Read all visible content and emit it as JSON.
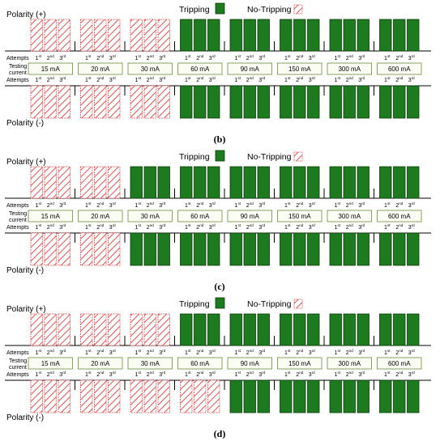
{
  "legend": {
    "tripping_label": "Tripping",
    "no_tripping_label": "No-Tripping"
  },
  "labels": {
    "polarity_pos": "Polarity (+)",
    "polarity_neg": "Polarity (-)",
    "attempts": "Attempts",
    "testing_line1": "Testing",
    "testing_line2": "current"
  },
  "attempt_ordinals": [
    {
      "n": "1",
      "sup": "st"
    },
    {
      "n": "2",
      "sup": "nd"
    },
    {
      "n": "3",
      "sup": "rd"
    }
  ],
  "currents": [
    "15 mA",
    "20 mA",
    "30 mA",
    "60 mA",
    "90 mA",
    "150 mA",
    "300 mA",
    "600 mA"
  ],
  "colors": {
    "tripping_fill": "#1e7a1e",
    "tripping_stroke": "#0a3d0a",
    "no_trip_stroke": "#e05050",
    "box_border": "#7a9a4a"
  },
  "panels": [
    {
      "caption": "(b)",
      "pos_trip": [
        false,
        false,
        false,
        true,
        true,
        true,
        true,
        true
      ],
      "neg_trip": [
        false,
        false,
        false,
        true,
        true,
        true,
        true,
        true
      ]
    },
    {
      "caption": "(c)",
      "pos_trip": [
        false,
        false,
        true,
        true,
        true,
        true,
        true,
        true
      ],
      "neg_trip": [
        false,
        false,
        true,
        true,
        true,
        true,
        true,
        true
      ]
    },
    {
      "caption": "(d)",
      "pos_trip": [
        false,
        false,
        false,
        true,
        true,
        true,
        true,
        true
      ],
      "neg_trip": [
        false,
        false,
        false,
        false,
        true,
        true,
        true,
        true
      ]
    }
  ]
}
